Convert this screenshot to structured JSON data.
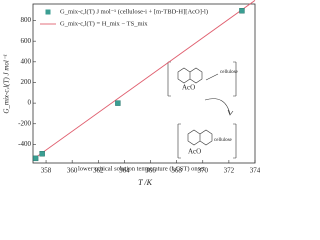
{
  "chart_data": {
    "type": "scatter",
    "x_label": "T /K",
    "y_label": "G_mix-c,l(T) J mol⁻¹",
    "xlim": [
      357,
      374
    ],
    "ylim": [
      -580,
      960
    ],
    "xticks": [
      358,
      360,
      362,
      364,
      366,
      368,
      370,
      372,
      374
    ],
    "yticks": [
      -400,
      -200,
      0,
      200,
      400,
      600,
      800
    ],
    "series": [
      {
        "name": "G_mix-c,l(T) J mol⁻¹ (cellulose-i + [m-TBD-H][AcO]-l)",
        "kind": "points",
        "color": "#3a9e92",
        "x": [
          357.2,
          357.7,
          363.5,
          373.0
        ],
        "values": [
          -535,
          -490,
          0,
          895
        ]
      },
      {
        "name": "G_mix-c,l(T) = H_mix − TS_mix",
        "kind": "line",
        "color": "#e06070",
        "x": [
          357,
          374
        ],
        "values": [
          -545,
          995
        ]
      }
    ],
    "annotations": [
      "lower critical solution temperature (LCST) onset",
      "cellulose",
      "cellulose",
      "AcO",
      "AcO"
    ]
  }
}
